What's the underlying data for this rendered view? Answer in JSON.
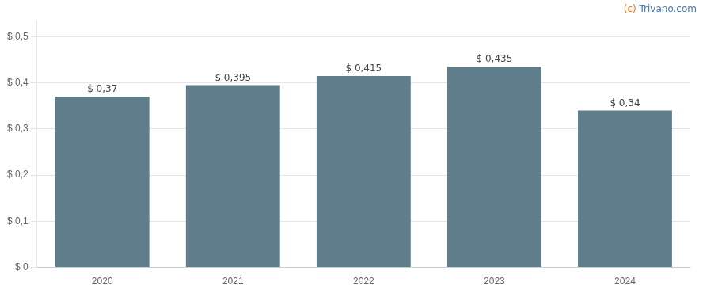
{
  "chart_data": {
    "type": "bar",
    "categories": [
      "2020",
      "2021",
      "2022",
      "2023",
      "2024"
    ],
    "values": [
      0.37,
      0.395,
      0.415,
      0.435,
      0.34
    ],
    "value_labels": [
      "$ 0,37",
      "$ 0,395",
      "$ 0,415",
      "$ 0,435",
      "$ 0,34"
    ],
    "data_labels": true,
    "color": "#607d8b",
    "ylim": [
      0,
      0.535
    ],
    "yticks": [
      {
        "value": 0.0,
        "label": "$ 0"
      },
      {
        "value": 0.1,
        "label": "$ 0,1"
      },
      {
        "value": 0.2,
        "label": "$ 0,2"
      },
      {
        "value": 0.3,
        "label": "$ 0,3"
      },
      {
        "value": 0.4,
        "label": "$ 0,4"
      },
      {
        "value": 0.5,
        "label": "$ 0,5"
      }
    ],
    "grid": true,
    "annotations": [
      {
        "text": "(c)",
        "color": "#e07820"
      },
      {
        "text": " Trivano.com",
        "color": "#4477aa"
      }
    ]
  }
}
